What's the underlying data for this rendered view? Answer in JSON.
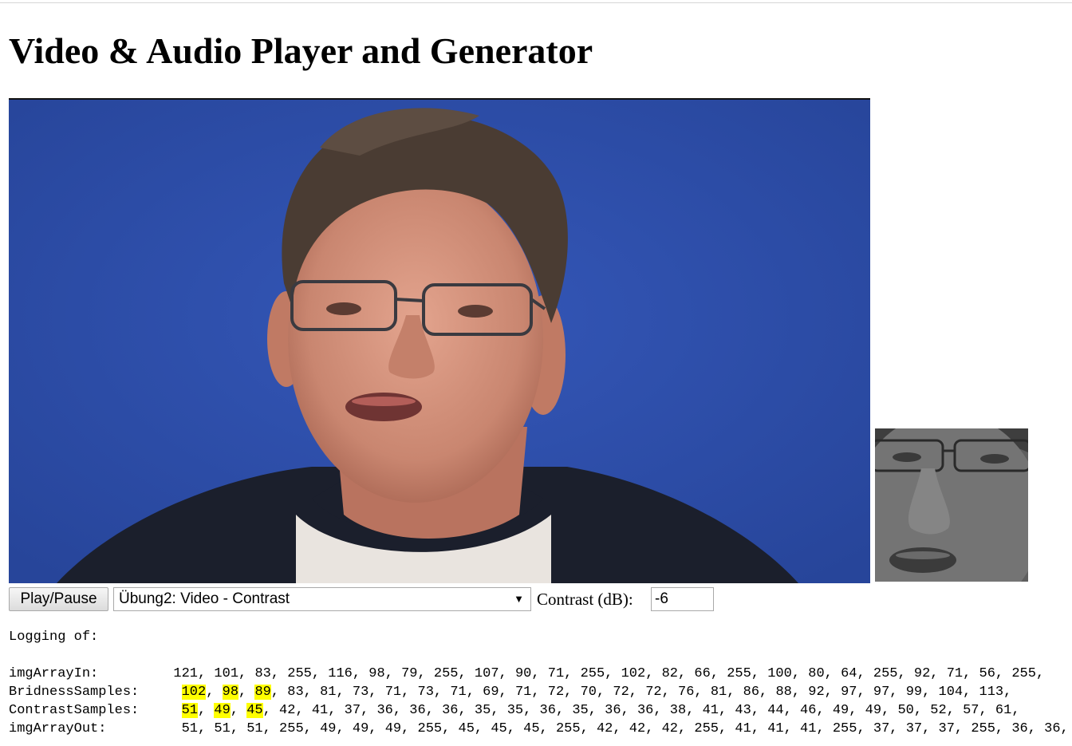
{
  "page": {
    "title": "Video & Audio Player and Generator"
  },
  "video": {
    "main_frame": "color-video-frame",
    "thumbnail": "grayscale-face-crop"
  },
  "controls": {
    "play_pause_label": "Play/Pause",
    "exercise_selected": "Übung2: Video - Contrast",
    "contrast_label": "Contrast (dB):",
    "contrast_value": "-6"
  },
  "logging": {
    "title": "Logging of:",
    "rows": [
      {
        "label": "imgArrayIn:",
        "pad": "  ",
        "highlight_count": 0,
        "values": [
          "121",
          "101",
          "83",
          "255",
          "116",
          "98",
          "79",
          "255",
          "107",
          "90",
          "71",
          "255",
          "102",
          "82",
          "66",
          "255",
          "100",
          "80",
          "64",
          "255",
          "92",
          "71",
          "56",
          "255"
        ]
      },
      {
        "label": "BridnessSamples:",
        "pad": "   ",
        "highlight_count": 3,
        "values": [
          "102",
          "98",
          "89",
          "83",
          "81",
          "73",
          "71",
          "73",
          "71",
          "69",
          "71",
          "72",
          "70",
          "72",
          "72",
          "76",
          "81",
          "86",
          "88",
          "92",
          "97",
          "97",
          "99",
          "104",
          "113"
        ]
      },
      {
        "label": "ContrastSamples:",
        "pad": "   ",
        "highlight_count": 3,
        "values": [
          "51",
          "49",
          "45",
          "42",
          "41",
          "37",
          "36",
          "36",
          "36",
          "35",
          "35",
          "36",
          "35",
          "36",
          "36",
          "38",
          "41",
          "43",
          "44",
          "46",
          "49",
          "49",
          "50",
          "52",
          "57",
          "61"
        ]
      },
      {
        "label": "imgArrayOut:",
        "pad": "   ",
        "highlight_count": 0,
        "values": [
          "51",
          "51",
          "51",
          "255",
          "49",
          "49",
          "49",
          "255",
          "45",
          "45",
          "45",
          "255",
          "42",
          "42",
          "42",
          "255",
          "41",
          "41",
          "41",
          "255",
          "37",
          "37",
          "37",
          "255",
          "36",
          "36"
        ]
      }
    ]
  }
}
